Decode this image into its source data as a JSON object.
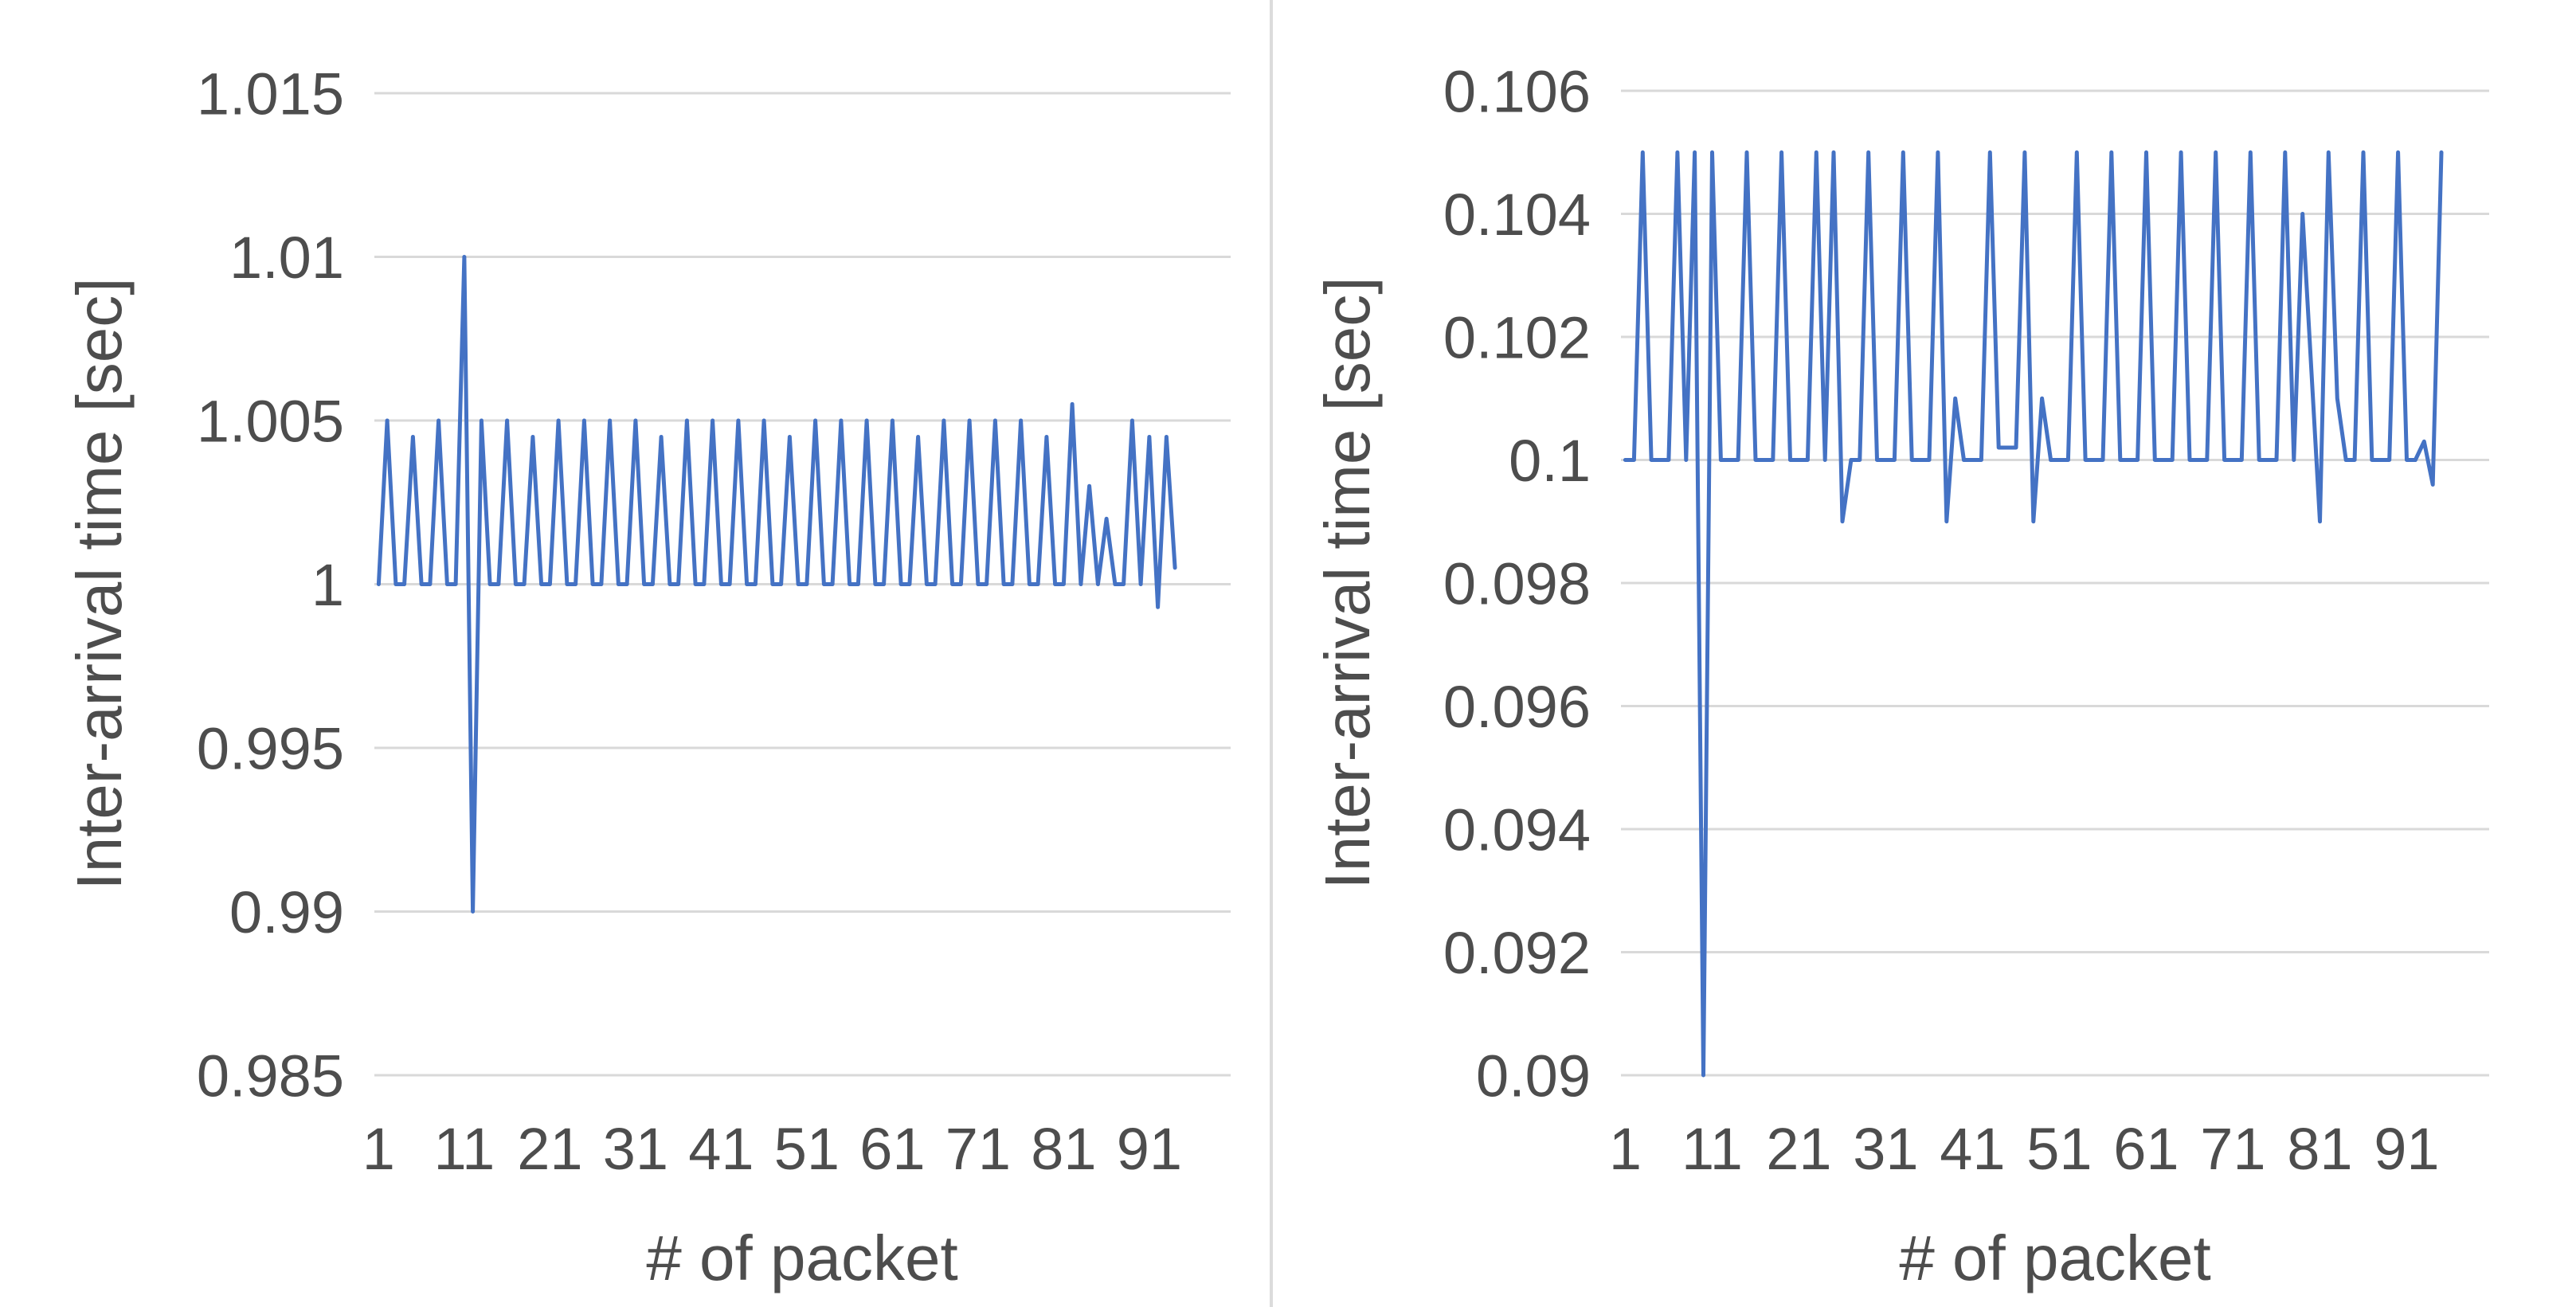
{
  "page": {
    "background": "#ffffff",
    "divider_color": "#dcdcdc",
    "text_color": "#4d4d4d"
  },
  "chart_data": [
    {
      "type": "line",
      "panel": "left",
      "title": "",
      "xlabel": "# of packet",
      "ylabel": "Inter-arrival time [sec]",
      "legend": "none",
      "grid": true,
      "line_color": "#4472c4",
      "grid_color": "#d9d9d9",
      "ylim": [
        0.985,
        1.015
      ],
      "y_ticks": [
        "1.015",
        "1.01",
        "1.005",
        "1",
        "0.995",
        "0.99",
        "0.985"
      ],
      "x_ticks": [
        1,
        11,
        21,
        31,
        41,
        51,
        61,
        71,
        81,
        91
      ],
      "x_slots": 100,
      "x_start": 1,
      "values": [
        1,
        1.005,
        1,
        1,
        1.0045,
        1,
        1,
        1.005,
        1,
        1,
        1.01,
        0.99,
        1.005,
        1,
        1,
        1.005,
        1,
        1,
        1.0045,
        1,
        1,
        1.005,
        1,
        1,
        1.005,
        1,
        1,
        1.005,
        1,
        1,
        1.005,
        1,
        1,
        1.0045,
        1,
        1,
        1.005,
        1,
        1,
        1.005,
        1,
        1,
        1.005,
        1,
        1,
        1.005,
        1,
        1,
        1.0045,
        1,
        1,
        1.005,
        1,
        1,
        1.005,
        1,
        1,
        1.005,
        1,
        1,
        1.005,
        1,
        1,
        1.0045,
        1,
        1,
        1.005,
        1,
        1,
        1.005,
        1,
        1,
        1.005,
        1,
        1,
        1.005,
        1,
        1,
        1.0045,
        1,
        1,
        1.0055,
        1,
        1.003,
        1,
        1.002,
        1,
        1,
        1.005,
        1,
        1.0045,
        0.9993,
        1.0045,
        1.0005
      ]
    },
    {
      "type": "line",
      "panel": "right",
      "title": "",
      "xlabel": "# of packet",
      "ylabel": "Inter-arrival time [sec]",
      "legend": "none",
      "grid": true,
      "line_color": "#4472c4",
      "grid_color": "#d9d9d9",
      "ylim": [
        0.09,
        0.106
      ],
      "y_ticks": [
        "0.106",
        "0.104",
        "0.102",
        "0.1",
        "0.098",
        "0.096",
        "0.094",
        "0.092",
        "0.09"
      ],
      "x_ticks": [
        1,
        11,
        21,
        31,
        41,
        51,
        61,
        71,
        81,
        91
      ],
      "x_slots": 100,
      "x_start": 1,
      "values": [
        0.1,
        0.1,
        0.105,
        0.1,
        0.1,
        0.1,
        0.105,
        0.1,
        0.105,
        0.09,
        0.105,
        0.1,
        0.1,
        0.1,
        0.105,
        0.1,
        0.1,
        0.1,
        0.105,
        0.1,
        0.1,
        0.1,
        0.105,
        0.1,
        0.105,
        0.099,
        0.1,
        0.1,
        0.105,
        0.1,
        0.1,
        0.1,
        0.105,
        0.1,
        0.1,
        0.1,
        0.105,
        0.099,
        0.101,
        0.1,
        0.1,
        0.1,
        0.105,
        0.1002,
        0.1002,
        0.1002,
        0.105,
        0.099,
        0.101,
        0.1,
        0.1,
        0.1,
        0.105,
        0.1,
        0.1,
        0.1,
        0.105,
        0.1,
        0.1,
        0.1,
        0.105,
        0.1,
        0.1,
        0.1,
        0.105,
        0.1,
        0.1,
        0.1,
        0.105,
        0.1,
        0.1,
        0.1,
        0.105,
        0.1,
        0.1,
        0.1,
        0.105,
        0.1,
        0.104,
        0.1015,
        0.099,
        0.105,
        0.101,
        0.1,
        0.1,
        0.105,
        0.1,
        0.1,
        0.1,
        0.105,
        0.1,
        0.1,
        0.1003,
        0.0996,
        0.105
      ]
    }
  ]
}
